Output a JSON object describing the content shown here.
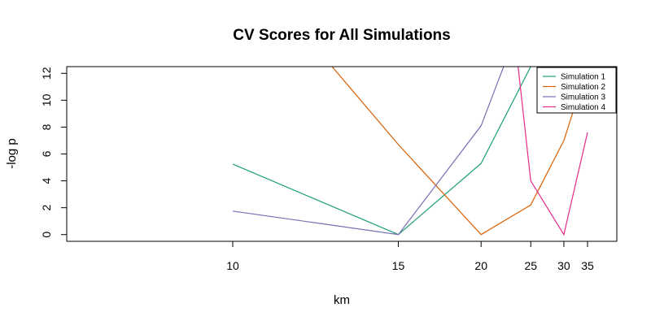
{
  "chart_data": {
    "type": "line",
    "title": "CV Scores for All Simulations",
    "xlabel": "km",
    "ylabel": "-log p",
    "x_scale": "reciprocal",
    "xticks": [
      10,
      15,
      20,
      25,
      30,
      35
    ],
    "yticks": [
      0,
      2,
      4,
      6,
      8,
      10,
      12
    ],
    "ylim": [
      -0.5,
      12.5
    ],
    "grid": false,
    "legend_position": "top-right",
    "series": [
      {
        "name": "Simulation 1",
        "color": "#1b9e77",
        "x": [
          10,
          15,
          20,
          25
        ],
        "y": [
          5.25,
          0.0,
          5.3,
          12.5
        ]
      },
      {
        "name": "Simulation 2",
        "color": "#d95f02",
        "x": [
          12.5,
          15,
          20,
          25,
          30,
          35
        ],
        "y": [
          12.5,
          6.7,
          0.0,
          2.2,
          7.0,
          12.5
        ]
      },
      {
        "name": "Simulation 3",
        "color": "#7570b3",
        "x": [
          10,
          15,
          20,
          22
        ],
        "y": [
          1.75,
          0.0,
          8.1,
          12.5
        ]
      },
      {
        "name": "Simulation 4",
        "color": "#e7298a",
        "x": [
          23.5,
          25,
          30,
          35
        ],
        "y": [
          12.5,
          4.0,
          0.0,
          7.6
        ]
      }
    ]
  }
}
